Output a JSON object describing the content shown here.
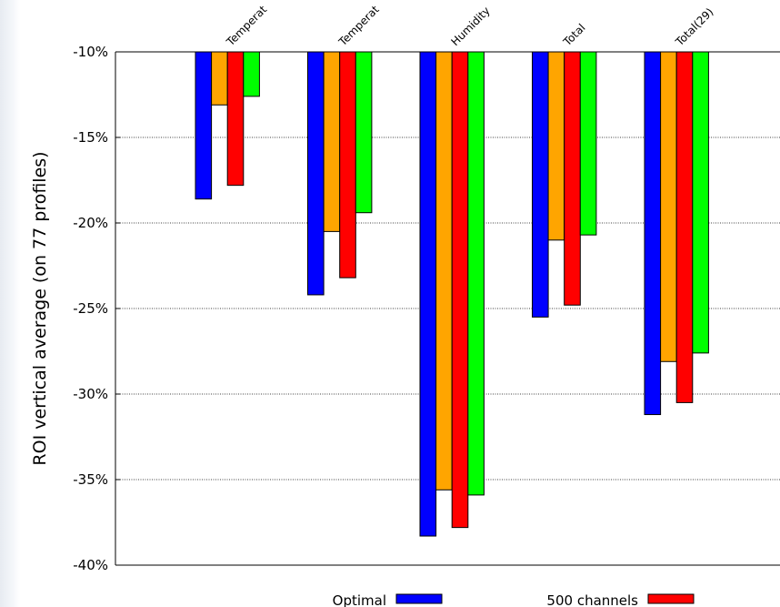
{
  "chart_data": {
    "type": "bar",
    "title": "",
    "xlabel": "",
    "ylabel": "ROI vertical average (on 77 profiles)",
    "ylim": [
      -40,
      -10
    ],
    "yticks": [
      -10,
      -15,
      -20,
      -25,
      -30,
      -35,
      -40
    ],
    "ytick_labels": [
      "-10%",
      "-15%",
      "-20%",
      "-25%",
      "-30%",
      "-35%",
      "-40%"
    ],
    "grid": true,
    "categories": [
      "Temperat",
      "Temperat",
      "Humidity",
      "Total",
      "Total(29)"
    ],
    "series": [
      {
        "name": "Optimal",
        "color": "#0000ff",
        "values": [
          -18.6,
          -24.2,
          -38.3,
          -25.5,
          -31.2
        ]
      },
      {
        "name": "",
        "color": "#ffa500",
        "values": [
          -13.1,
          -20.5,
          -35.6,
          -21.0,
          -28.1
        ]
      },
      {
        "name": "500 channels",
        "color": "#ff0000",
        "values": [
          -17.8,
          -23.2,
          -37.8,
          -24.8,
          -30.5
        ]
      },
      {
        "name": "",
        "color": "#00ff00",
        "values": [
          -12.6,
          -19.4,
          -35.9,
          -20.7,
          -27.6
        ]
      }
    ],
    "legend": [
      "Optimal",
      "500 channels"
    ],
    "legend_position": "bottom"
  }
}
